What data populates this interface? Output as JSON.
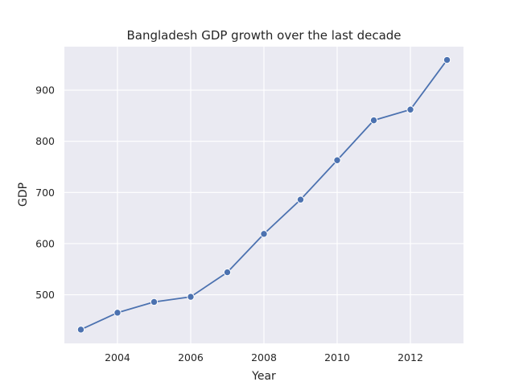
{
  "chart_data": {
    "type": "line",
    "title": "Bangladesh GDP growth over the last decade",
    "xlabel": "Year",
    "ylabel": "GDP",
    "x": [
      2003,
      2004,
      2005,
      2006,
      2007,
      2008,
      2009,
      2010,
      2011,
      2012,
      2013
    ],
    "series": [
      {
        "values": [
          432,
          465,
          486,
          496,
          544,
          619,
          686,
          763,
          841,
          862,
          959
        ]
      }
    ],
    "xlim": [
      2002.55,
      2013.45
    ],
    "ylim": [
      405,
      985
    ],
    "xticks": [
      2004,
      2006,
      2008,
      2010,
      2012
    ],
    "yticks": [
      500,
      600,
      700,
      800,
      900
    ],
    "grid": true,
    "marker": "circle",
    "line_color": "#4c72b0",
    "background_color": "#eaeaf2"
  }
}
